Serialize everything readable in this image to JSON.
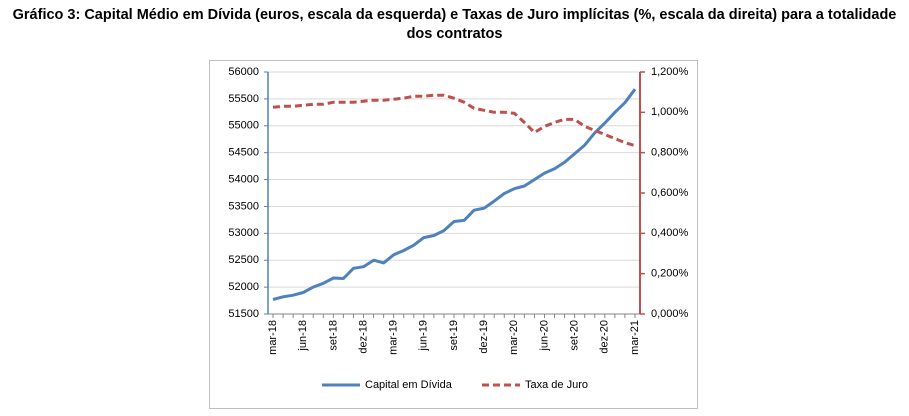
{
  "chart_data": {
    "type": "line",
    "title": "Gráfico 3: Capital Médio em Dívida (euros, escala da esquerda) e Taxas de Juro implícitas (%, escala da direita) para a totalidade dos contratos",
    "categories": [
      "mar-18",
      null,
      null,
      "jun-18",
      null,
      null,
      "set-18",
      null,
      null,
      "dez-18",
      null,
      null,
      "mar-19",
      null,
      null,
      "jun-19",
      null,
      null,
      "set-19",
      null,
      null,
      "dez-19",
      null,
      null,
      "mar-20",
      null,
      null,
      "jun-20",
      null,
      null,
      "set-20",
      null,
      null,
      "dez-20",
      null,
      null,
      "mar-21"
    ],
    "series": [
      {
        "name": "Capital em Dívida",
        "color": "#4f81bd",
        "axis": "y",
        "dash": false,
        "values": [
          51770,
          51820,
          51850,
          51900,
          52000,
          52070,
          52170,
          52160,
          52350,
          52380,
          52500,
          52450,
          52600,
          52680,
          52780,
          52920,
          52960,
          53050,
          53220,
          53240,
          53430,
          53470,
          53600,
          53740,
          53830,
          53880,
          54000,
          54120,
          54200,
          54320,
          54480,
          54640,
          54870,
          55050,
          55250,
          55430,
          55680
        ]
      },
      {
        "name": "Taxa de Juro",
        "color": "#c0504d",
        "axis": "y2",
        "dash": true,
        "values": [
          1.025,
          1.03,
          1.03,
          1.035,
          1.04,
          1.04,
          1.05,
          1.05,
          1.05,
          1.055,
          1.06,
          1.06,
          1.065,
          1.07,
          1.08,
          1.08,
          1.085,
          1.085,
          1.07,
          1.05,
          1.02,
          1.01,
          1.0,
          1.0,
          0.995,
          0.95,
          0.9,
          0.93,
          0.95,
          0.965,
          0.965,
          0.93,
          0.91,
          0.89,
          0.87,
          0.85,
          0.835
        ]
      }
    ],
    "ylim": [
      51500,
      56000
    ],
    "yticks": [
      51500,
      52000,
      52500,
      53000,
      53500,
      54000,
      54500,
      55000,
      55500,
      56000
    ],
    "y2lim": [
      0,
      1.2
    ],
    "y2ticks": [
      {
        "value": 0,
        "label": "0,000%"
      },
      {
        "value": 0.2,
        "label": "0,200%"
      },
      {
        "value": 0.4,
        "label": "0,400%"
      },
      {
        "value": 0.6,
        "label": "0,600%"
      },
      {
        "value": 0.8,
        "label": "0,800%"
      },
      {
        "value": 1.0,
        "label": "1,000%"
      },
      {
        "value": 1.2,
        "label": "1,200%"
      }
    ],
    "grid": true,
    "legend": "bottom"
  }
}
